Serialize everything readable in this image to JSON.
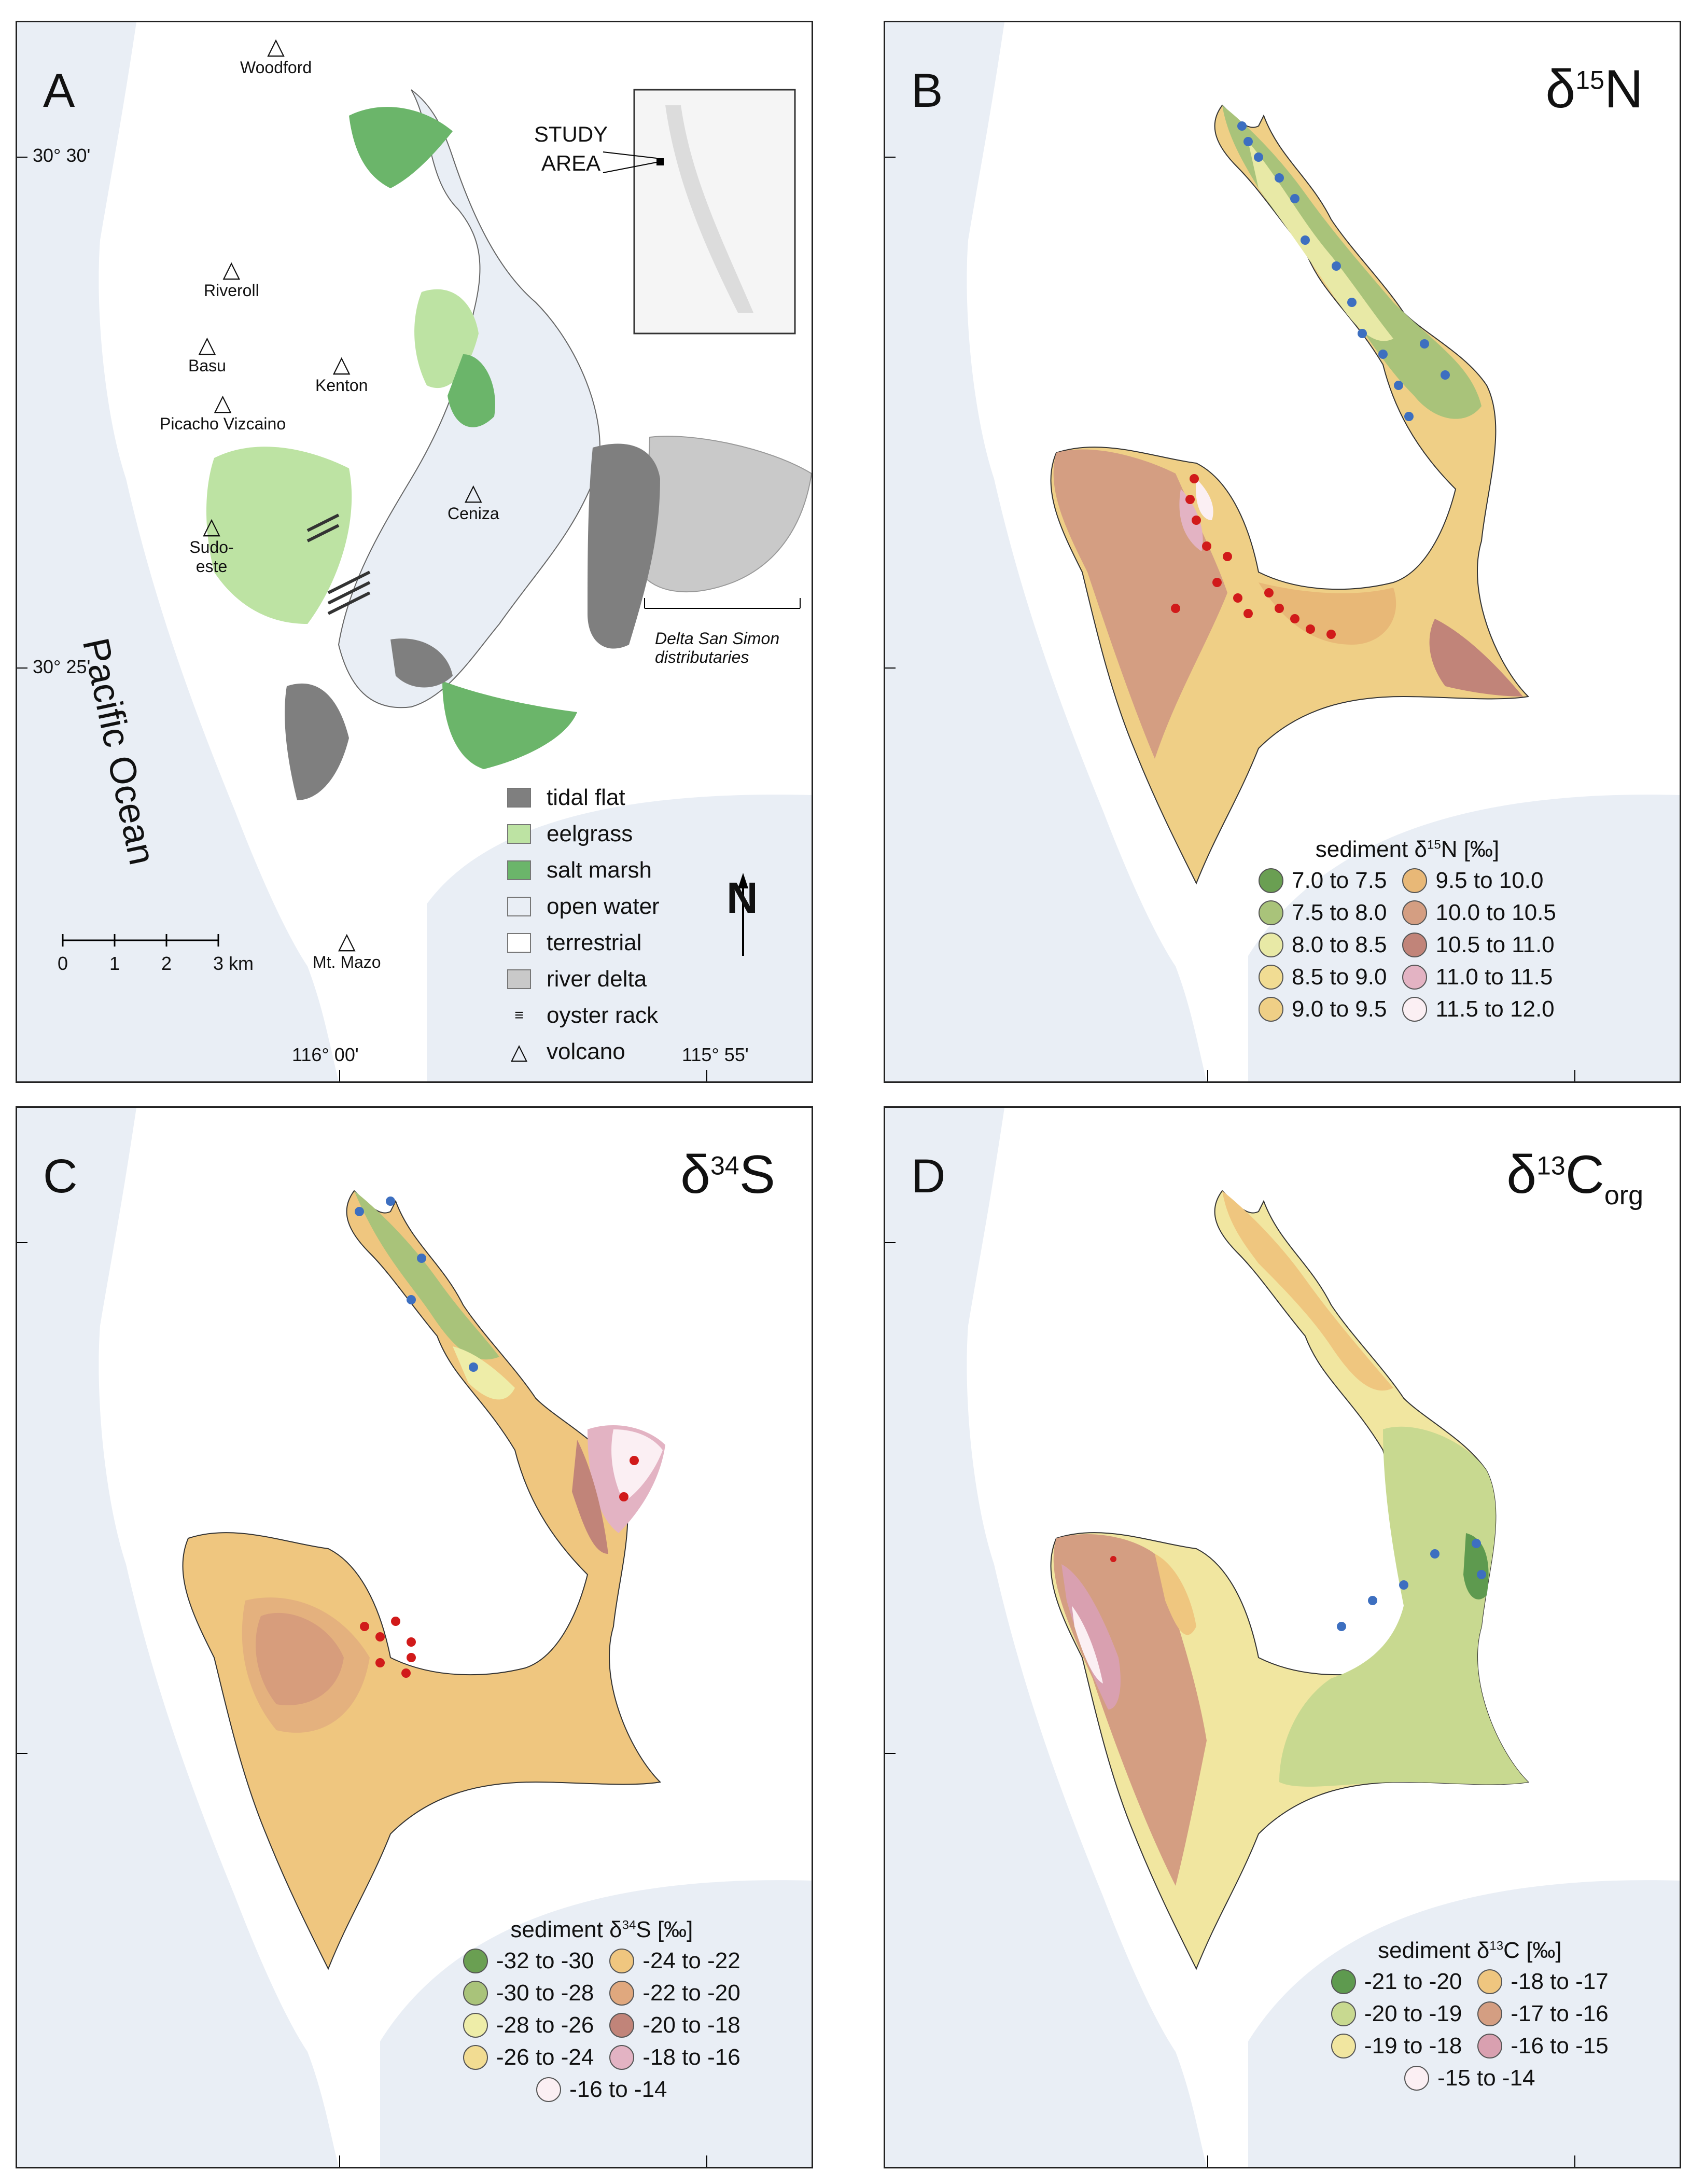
{
  "panel_a": {
    "label": "A",
    "lat_labels": [
      "30° 30'",
      "30° 25'"
    ],
    "lon_labels": [
      "116° 00'",
      "115° 55'"
    ],
    "ocean_label": "Pacific Ocean",
    "inset_label": "STUDY AREA",
    "delta_label": "Delta San Simon distributaries",
    "volcanoes": [
      "Woodford",
      "Riveroll",
      "Basu",
      "Kenton",
      "Picacho Vizcaino",
      "Ceniza",
      "Sudo-este",
      "Mt. Mazo"
    ],
    "scale": {
      "ticks": [
        "0",
        "1",
        "2",
        "3 km"
      ]
    },
    "north": "N",
    "legend": [
      {
        "label": "tidal flat",
        "color": "#7f7f7f"
      },
      {
        "label": "eelgrass",
        "color": "#bde3a3"
      },
      {
        "label": "salt marsh",
        "color": "#6bb56a"
      },
      {
        "label": "open water",
        "color": "#e9eef5"
      },
      {
        "label": "terrestrial",
        "color": "#ffffff"
      },
      {
        "label": "river delta",
        "color": "#c9c9c9"
      },
      {
        "label": "oyster rack",
        "color": "#333333"
      },
      {
        "label": "volcano",
        "color": "#000000"
      }
    ]
  },
  "panel_b": {
    "label": "B",
    "title_main": "δ",
    "title_sup": "15",
    "title_tail": "N",
    "legend_title": "sediment δ15N [‰]",
    "legend_title_parts": [
      "sediment δ",
      "15",
      "N [‰]"
    ],
    "legend": [
      {
        "label": "7.0 to 7.5",
        "color": "#6a9f52"
      },
      {
        "label": "7.5 to 8.0",
        "color": "#a9c37a"
      },
      {
        "label": "8.0 to 8.5",
        "color": "#e8e9a6"
      },
      {
        "label": "8.5 to 9.0",
        "color": "#f1dc93"
      },
      {
        "label": "9.0 to 9.5",
        "color": "#efcf86"
      },
      {
        "label": "9.5 to 10.0",
        "color": "#e8b877"
      },
      {
        "label": "10.0 to 10.5",
        "color": "#d49e82"
      },
      {
        "label": "10.5 to 11.0",
        "color": "#c18479"
      },
      {
        "label": "11.0 to 11.5",
        "color": "#e3b3c3"
      },
      {
        "label": "11.5 to 12.0",
        "color": "#fbeff3"
      }
    ]
  },
  "panel_c": {
    "label": "C",
    "title_main": "δ",
    "title_sup": "34",
    "title_tail": "S",
    "legend_title_parts": [
      "sediment δ",
      "34",
      "S [‰]"
    ],
    "legend": [
      {
        "label": "-32 to -30",
        "color": "#6a9f52"
      },
      {
        "label": "-30 to -28",
        "color": "#a9c37a"
      },
      {
        "label": "-28 to -26",
        "color": "#eeeda8"
      },
      {
        "label": "-26 to -24",
        "color": "#f2dc92"
      },
      {
        "label": "-24 to -22",
        "color": "#efc67f"
      },
      {
        "label": "-22 to -20",
        "color": "#e0a87e"
      },
      {
        "label": "-20 to -18",
        "color": "#c18479"
      },
      {
        "label": "-18 to -16",
        "color": "#e3b3c3"
      },
      {
        "label": "-16 to -14",
        "color": "#fbeff3"
      }
    ]
  },
  "panel_d": {
    "label": "D",
    "title_main": "δ",
    "title_sup": "13",
    "title_tail": "C",
    "title_sub": "org",
    "legend_title_parts": [
      "sediment δ",
      "13",
      "C [‰]"
    ],
    "legend": [
      {
        "label": "-21 to -20",
        "color": "#5e9a4f"
      },
      {
        "label": "-20 to -19",
        "color": "#c8d990"
      },
      {
        "label": "-19 to -18",
        "color": "#f1e6a0"
      },
      {
        "label": "-18 to -17",
        "color": "#efc67f"
      },
      {
        "label": "-17 to -16",
        "color": "#d49e82"
      },
      {
        "label": "-16 to -15",
        "color": "#d9a0b0"
      },
      {
        "label": "-15 to -14",
        "color": "#fbeff3"
      }
    ]
  }
}
